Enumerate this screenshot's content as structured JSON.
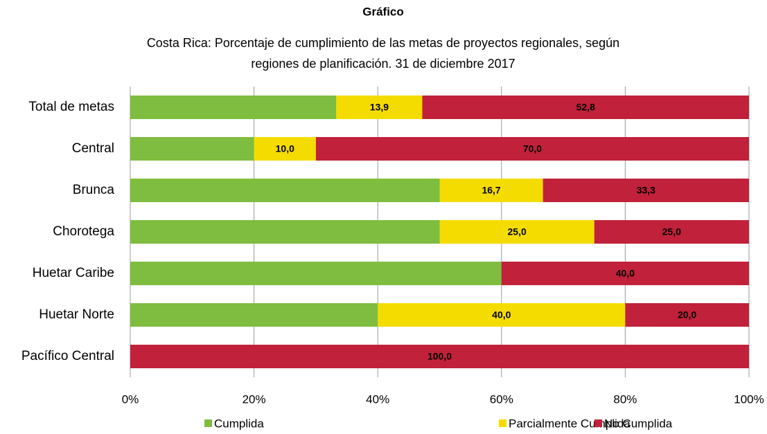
{
  "chart_data": {
    "type": "stacked-bar-horizontal",
    "title": "Gráfico",
    "subtitle": [
      "Costa Rica: Porcentaje de cumplimiento de las metas de proyectos regionales, según",
      "regiones de planificación. 31 de diciembre 2017"
    ],
    "categories": [
      "Total de metas",
      "Central",
      "Brunca",
      "Chorotega",
      "Huetar Caribe",
      "Huetar Norte",
      "Pacífico Central"
    ],
    "series": [
      {
        "name": "Cumplida",
        "color": "#7ebd3f",
        "values": [
          33.3,
          20,
          50,
          50,
          60,
          40,
          0
        ]
      },
      {
        "name": "Parcialmente Cumplida",
        "color": "#f5dc00",
        "values": [
          13.9,
          10,
          16.7,
          25,
          0,
          40,
          0
        ],
        "value_labels": [
          "13,9",
          "10,0",
          "16,7",
          "25,0",
          null,
          "40,0",
          null
        ]
      },
      {
        "name": "No Cumplida",
        "color": "#c1213a",
        "values": [
          52.8,
          70,
          33.3,
          25,
          40,
          20,
          100
        ],
        "value_labels": [
          "52,8",
          "70,0",
          "33,3",
          "25,0",
          "40,0",
          "20,0",
          "100,0"
        ]
      }
    ],
    "xlim": [
      0,
      100
    ],
    "xticks": [
      {
        "value": 0,
        "label": "0%"
      },
      {
        "value": 20,
        "label": "20%"
      },
      {
        "value": 40,
        "label": "40%"
      },
      {
        "value": 60,
        "label": "60%"
      },
      {
        "value": 80,
        "label": "80%"
      },
      {
        "value": 100,
        "label": "100%"
      }
    ],
    "grid": true,
    "legend": "bottom"
  }
}
